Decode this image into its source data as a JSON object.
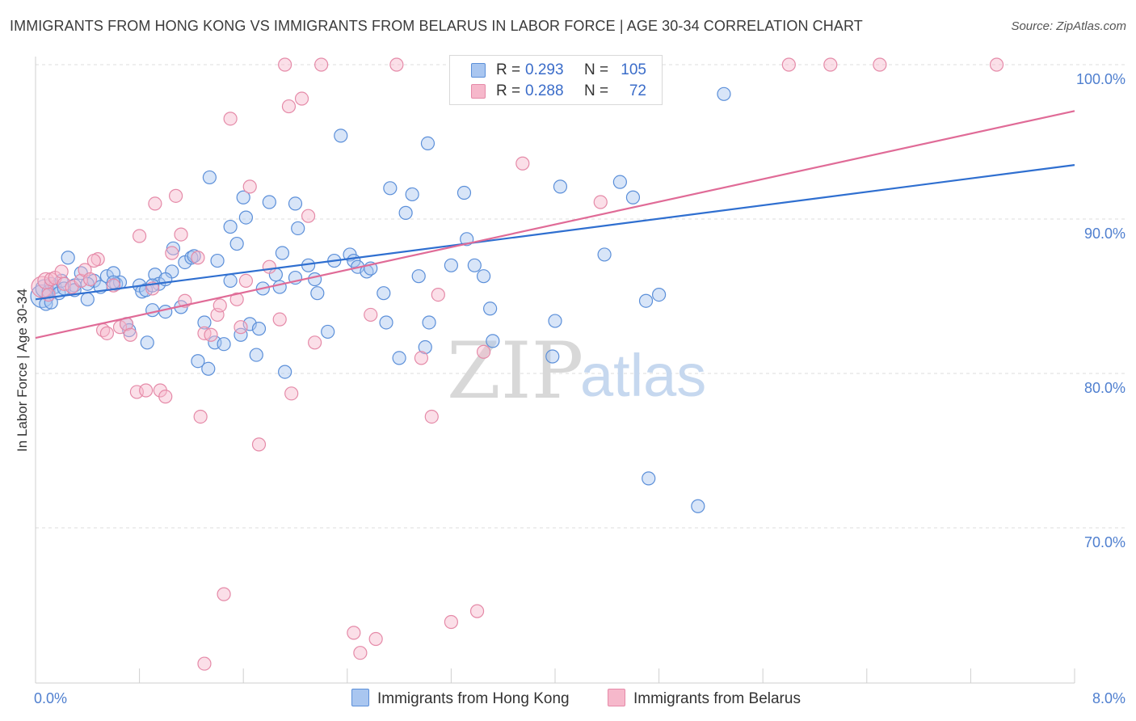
{
  "title": "IMMIGRANTS FROM HONG KONG VS IMMIGRANTS FROM BELARUS IN LABOR FORCE | AGE 30-34 CORRELATION CHART",
  "source": "Source: ZipAtlas.com",
  "watermark": {
    "zip": "ZIP",
    "atlas": "atlas"
  },
  "colors": {
    "hong_kong_fill": "#a9c6f0",
    "hong_kong_stroke": "#5b8fd9",
    "hong_kong_line": "#2f6fd0",
    "belarus_fill": "#f6b8cb",
    "belarus_stroke": "#e58aa8",
    "belarus_line": "#e06b97",
    "tick_text": "#4f7fcf",
    "grid": "#dddddd"
  },
  "stats": {
    "hong_kong": {
      "r_label": "R = ",
      "r_value": "0.293",
      "n_label": "N = ",
      "n_value": "105"
    },
    "belarus": {
      "r_label": "R = ",
      "r_value": "0.288",
      "n_label": "N = ",
      "n_value": "72"
    }
  },
  "legend": {
    "hong_kong": "Immigrants from Hong Kong",
    "belarus": "Immigrants from Belarus"
  },
  "chart_data": {
    "type": "scatter",
    "title": "IMMIGRANTS FROM HONG KONG VS IMMIGRANTS FROM BELARUS IN LABOR FORCE | AGE 30-34 CORRELATION CHART",
    "xlabel": "",
    "ylabel": "In Labor Force | Age 30-34",
    "xlim": [
      0,
      8
    ],
    "ylim": [
      60.5,
      101.5
    ],
    "x_tick_labels": [
      "0.0%",
      "8.0%"
    ],
    "y_ticks": [
      70,
      80,
      90,
      100
    ],
    "y_tick_labels": [
      "70.0%",
      "80.0%",
      "90.0%",
      "100.0%"
    ],
    "grid": true,
    "legend_position": "bottom-center",
    "series": [
      {
        "name": "Immigrants from Hong Kong",
        "trend": {
          "x": [
            0,
            8
          ],
          "y": [
            84.8,
            93.5
          ]
        },
        "points": [
          [
            0.05,
            85.0
          ],
          [
            0.07,
            85.5
          ],
          [
            0.1,
            85.3
          ],
          [
            0.12,
            85.8
          ],
          [
            0.15,
            85.6
          ],
          [
            0.18,
            85.2
          ],
          [
            0.2,
            86.0
          ],
          [
            0.22,
            85.5
          ],
          [
            0.25,
            87.5
          ],
          [
            0.3,
            85.7
          ],
          [
            0.35,
            86.5
          ],
          [
            0.4,
            84.8
          ],
          [
            0.45,
            86.0
          ],
          [
            0.5,
            85.6
          ],
          [
            0.55,
            86.3
          ],
          [
            0.6,
            86.5
          ],
          [
            0.62,
            85.8
          ],
          [
            0.65,
            85.9
          ],
          [
            0.7,
            83.2
          ],
          [
            0.72,
            82.8
          ],
          [
            0.8,
            85.7
          ],
          [
            0.82,
            85.3
          ],
          [
            0.85,
            85.4
          ],
          [
            0.86,
            82.0
          ],
          [
            0.9,
            84.1
          ],
          [
            0.92,
            86.4
          ],
          [
            0.95,
            85.8
          ],
          [
            1.0,
            84.0
          ],
          [
            1.05,
            86.6
          ],
          [
            1.06,
            88.1
          ],
          [
            1.12,
            84.3
          ],
          [
            1.15,
            87.2
          ],
          [
            1.2,
            87.5
          ],
          [
            1.22,
            87.6
          ],
          [
            1.25,
            80.8
          ],
          [
            1.3,
            83.3
          ],
          [
            1.33,
            80.3
          ],
          [
            1.34,
            92.7
          ],
          [
            1.38,
            82.0
          ],
          [
            1.4,
            87.3
          ],
          [
            1.45,
            81.9
          ],
          [
            1.5,
            89.5
          ],
          [
            1.55,
            88.4
          ],
          [
            1.58,
            82.5
          ],
          [
            1.6,
            91.4
          ],
          [
            1.62,
            90.1
          ],
          [
            1.65,
            83.2
          ],
          [
            1.7,
            81.2
          ],
          [
            1.72,
            82.9
          ],
          [
            1.75,
            85.5
          ],
          [
            1.8,
            91.1
          ],
          [
            1.85,
            86.4
          ],
          [
            1.88,
            85.6
          ],
          [
            1.9,
            87.8
          ],
          [
            1.92,
            80.1
          ],
          [
            2.0,
            91.0
          ],
          [
            2.02,
            89.4
          ],
          [
            2.1,
            87.0
          ],
          [
            2.15,
            86.1
          ],
          [
            2.17,
            85.2
          ],
          [
            2.25,
            82.7
          ],
          [
            2.3,
            87.3
          ],
          [
            2.35,
            95.4
          ],
          [
            2.42,
            87.7
          ],
          [
            2.45,
            87.3
          ],
          [
            2.48,
            86.9
          ],
          [
            2.55,
            86.6
          ],
          [
            2.58,
            86.8
          ],
          [
            2.68,
            85.2
          ],
          [
            2.7,
            83.3
          ],
          [
            2.8,
            81.0
          ],
          [
            2.73,
            92.0
          ],
          [
            2.85,
            90.4
          ],
          [
            2.9,
            91.6
          ],
          [
            2.95,
            86.3
          ],
          [
            3.0,
            81.7
          ],
          [
            3.02,
            94.9
          ],
          [
            3.03,
            83.3
          ],
          [
            3.2,
            87.0
          ],
          [
            3.3,
            91.7
          ],
          [
            3.32,
            88.7
          ],
          [
            3.38,
            87.0
          ],
          [
            3.45,
            86.3
          ],
          [
            3.5,
            84.2
          ],
          [
            3.52,
            82.1
          ],
          [
            3.98,
            81.1
          ],
          [
            4.0,
            83.4
          ],
          [
            4.04,
            92.1
          ],
          [
            4.5,
            92.4
          ],
          [
            4.6,
            91.4
          ],
          [
            4.38,
            87.7
          ],
          [
            4.7,
            84.7
          ],
          [
            4.72,
            73.2
          ],
          [
            4.8,
            85.1
          ],
          [
            5.1,
            71.4
          ],
          [
            5.3,
            98.1
          ],
          [
            0.08,
            84.5
          ],
          [
            0.12,
            84.6
          ],
          [
            0.3,
            85.4
          ],
          [
            0.6,
            85.9
          ],
          [
            1.0,
            86.1
          ],
          [
            1.5,
            86.0
          ],
          [
            2.0,
            86.2
          ],
          [
            0.4,
            85.8
          ],
          [
            0.9,
            85.7
          ]
        ],
        "radius_note": "all points r~8 except first two larger"
      },
      {
        "name": "Immigrants from Belarus",
        "trend": {
          "x": [
            0,
            8
          ],
          "y": [
            82.3,
            97.0
          ]
        },
        "points": [
          [
            0.05,
            85.6
          ],
          [
            0.08,
            86.0
          ],
          [
            0.1,
            85.1
          ],
          [
            0.12,
            86.1
          ],
          [
            0.15,
            86.2
          ],
          [
            0.2,
            86.6
          ],
          [
            0.22,
            85.8
          ],
          [
            0.28,
            85.6
          ],
          [
            0.35,
            86.0
          ],
          [
            0.38,
            86.7
          ],
          [
            0.42,
            86.1
          ],
          [
            0.48,
            87.4
          ],
          [
            0.52,
            82.8
          ],
          [
            0.55,
            82.6
          ],
          [
            0.6,
            85.7
          ],
          [
            0.65,
            83.0
          ],
          [
            0.7,
            83.2
          ],
          [
            0.73,
            82.5
          ],
          [
            0.78,
            78.8
          ],
          [
            0.8,
            88.9
          ],
          [
            0.85,
            78.9
          ],
          [
            0.9,
            85.5
          ],
          [
            0.92,
            91.0
          ],
          [
            0.96,
            78.9
          ],
          [
            1.0,
            78.5
          ],
          [
            1.05,
            87.8
          ],
          [
            1.08,
            91.5
          ],
          [
            1.12,
            89.0
          ],
          [
            1.15,
            84.7
          ],
          [
            1.25,
            87.5
          ],
          [
            1.27,
            77.2
          ],
          [
            1.3,
            82.6
          ],
          [
            1.35,
            82.5
          ],
          [
            1.4,
            83.8
          ],
          [
            1.42,
            84.4
          ],
          [
            1.45,
            65.7
          ],
          [
            1.5,
            96.5
          ],
          [
            1.55,
            84.8
          ],
          [
            1.58,
            83.0
          ],
          [
            1.62,
            86.0
          ],
          [
            1.65,
            92.1
          ],
          [
            1.72,
            75.4
          ],
          [
            1.8,
            86.9
          ],
          [
            1.88,
            83.5
          ],
          [
            1.92,
            100.0
          ],
          [
            1.95,
            97.3
          ],
          [
            1.97,
            78.7
          ],
          [
            2.05,
            97.8
          ],
          [
            2.1,
            90.2
          ],
          [
            2.15,
            82.0
          ],
          [
            2.2,
            100.0
          ],
          [
            2.45,
            63.2
          ],
          [
            2.5,
            61.9
          ],
          [
            2.58,
            83.8
          ],
          [
            2.62,
            62.8
          ],
          [
            2.78,
            100.0
          ],
          [
            2.97,
            81.0
          ],
          [
            3.05,
            77.2
          ],
          [
            3.1,
            85.1
          ],
          [
            3.2,
            63.9
          ],
          [
            3.4,
            64.6
          ],
          [
            3.45,
            81.4
          ],
          [
            3.55,
            100.0
          ],
          [
            3.75,
            93.6
          ],
          [
            4.15,
            100.0
          ],
          [
            4.35,
            91.1
          ],
          [
            5.8,
            100.0
          ],
          [
            6.12,
            100.0
          ],
          [
            6.5,
            100.0
          ],
          [
            7.4,
            100.0
          ],
          [
            1.3,
            61.2
          ],
          [
            0.45,
            87.3
          ]
        ]
      }
    ]
  }
}
